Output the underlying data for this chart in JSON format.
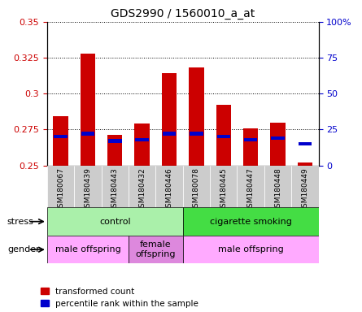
{
  "title": "GDS2990 / 1560010_a_at",
  "samples": [
    "GSM180067",
    "GSM180439",
    "GSM180443",
    "GSM180432",
    "GSM180446",
    "GSM180078",
    "GSM180445",
    "GSM180447",
    "GSM180448",
    "GSM180449"
  ],
  "red_values": [
    0.284,
    0.328,
    0.271,
    0.279,
    0.314,
    0.318,
    0.292,
    0.276,
    0.28,
    0.252
  ],
  "blue_percentile": [
    20,
    22,
    17,
    18,
    22,
    22,
    20,
    18,
    19,
    15
  ],
  "ylim_left": [
    0.25,
    0.35
  ],
  "ylim_right": [
    0,
    100
  ],
  "yticks_left": [
    0.25,
    0.275,
    0.3,
    0.325,
    0.35
  ],
  "yticks_right": [
    0,
    25,
    50,
    75,
    100
  ],
  "bar_width": 0.55,
  "red_color": "#cc0000",
  "blue_color": "#0000cc",
  "stress_groups": [
    {
      "label": "control",
      "start": 0,
      "end": 5,
      "color": "#aaf0aa"
    },
    {
      "label": "cigarette smoking",
      "start": 5,
      "end": 10,
      "color": "#44dd44"
    }
  ],
  "gender_groups": [
    {
      "label": "male offspring",
      "start": 0,
      "end": 3,
      "color": "#ffaaff"
    },
    {
      "label": "female\noffspring",
      "start": 3,
      "end": 5,
      "color": "#dd88dd"
    },
    {
      "label": "male offspring",
      "start": 5,
      "end": 10,
      "color": "#ffaaff"
    }
  ],
  "legend_red": "transformed count",
  "legend_blue": "percentile rank within the sample",
  "stress_label": "stress",
  "gender_label": "gender",
  "bar_bottom": 0.25,
  "background_color": "#ffffff",
  "xticklabel_bg": "#cccccc",
  "title_fontsize": 10
}
